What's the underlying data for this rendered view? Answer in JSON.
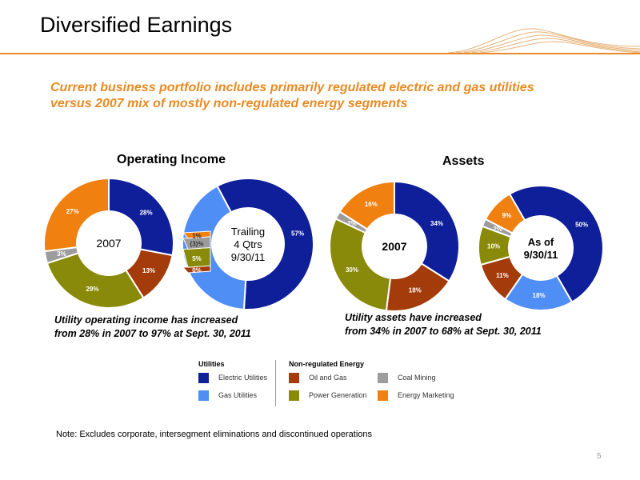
{
  "page": {
    "title": "Diversified Earnings",
    "subtitle_line1": "Current business portfolio includes primarily regulated electric and gas utilities",
    "subtitle_line2": "versus 2007 mix of mostly non-regulated energy segments",
    "note": "Note:  Excludes corporate, intersegment eliminations and discontinued operations",
    "page_number": "5"
  },
  "sections": {
    "operating_income": {
      "title": "Operating Income",
      "caption_line1": "Utility operating income has increased",
      "caption_line2": "from 28% in 2007 to 97% at Sept. 30, 2011"
    },
    "assets": {
      "title": "Assets",
      "caption_line1": "Utility assets have increased",
      "caption_line2": "from 34% in 2007 to 68% at Sept. 30, 2011"
    }
  },
  "legend": {
    "utilities_heading": "Utilities",
    "nonreg_heading": "Non-regulated Energy",
    "items": [
      {
        "label": "Electric Utilities",
        "color": "#0f1f9a"
      },
      {
        "label": "Gas Utilities",
        "color": "#4f8ef5"
      },
      {
        "label": "Oil and Gas",
        "color": "#a33c0a"
      },
      {
        "label": "Power Generation",
        "color": "#8a8a0a"
      },
      {
        "label": "Coal Mining",
        "color": "#9c9c9c"
      },
      {
        "label": "Energy Marketing",
        "color": "#f08010"
      }
    ]
  },
  "chart_data": [
    {
      "type": "pie",
      "group": "Operating Income",
      "center_label": [
        "2007"
      ],
      "slices": [
        {
          "category": "Electric Utilities",
          "value": 28,
          "label": "28%"
        },
        {
          "category": "Oil and Gas",
          "value": 13,
          "label": "13%"
        },
        {
          "category": "Power Generation",
          "value": 29,
          "label": "29%"
        },
        {
          "category": "Coal Mining",
          "value": 3,
          "label": "3%"
        },
        {
          "category": "Energy Marketing",
          "value": 27,
          "label": "27%"
        }
      ]
    },
    {
      "type": "pie",
      "group": "Operating Income",
      "center_label": [
        "Trailing",
        "4 Qtrs",
        "9/30/11"
      ],
      "slices": [
        {
          "category": "Electric Utilities",
          "value": 57,
          "label": "57%"
        },
        {
          "category": "Gas Utilities",
          "value": 40,
          "label": "40%"
        },
        {
          "category": "Oil and Gas",
          "value": 0,
          "label": "0%"
        },
        {
          "category": "Power Generation",
          "value": 5,
          "label": "5%"
        },
        {
          "category": "Coal Mining",
          "value": -3,
          "label": "(3)%"
        },
        {
          "category": "Energy Marketing",
          "value": 1,
          "label": "1%"
        }
      ]
    },
    {
      "type": "pie",
      "group": "Assets",
      "center_label": [
        "2007"
      ],
      "slices": [
        {
          "category": "Electric Utilities",
          "value": 34,
          "label": "34%"
        },
        {
          "category": "Oil and Gas",
          "value": 18,
          "label": "18%"
        },
        {
          "category": "Power Generation",
          "value": 30,
          "label": "30%"
        },
        {
          "category": "Coal Mining",
          "value": 2,
          "label": "2%"
        },
        {
          "category": "Energy Marketing",
          "value": 16,
          "label": "16%"
        }
      ]
    },
    {
      "type": "pie",
      "group": "Assets",
      "center_label": [
        "As of",
        "9/30/11"
      ],
      "slices": [
        {
          "category": "Electric Utilities",
          "value": 50,
          "label": "50%"
        },
        {
          "category": "Gas Utilities",
          "value": 18,
          "label": "18%"
        },
        {
          "category": "Oil and Gas",
          "value": 11,
          "label": "11%"
        },
        {
          "category": "Power Generation",
          "value": 10,
          "label": "10%"
        },
        {
          "category": "Coal Mining",
          "value": 2,
          "label": "2%"
        },
        {
          "category": "Energy Marketing",
          "value": 9,
          "label": "9%"
        }
      ]
    }
  ]
}
